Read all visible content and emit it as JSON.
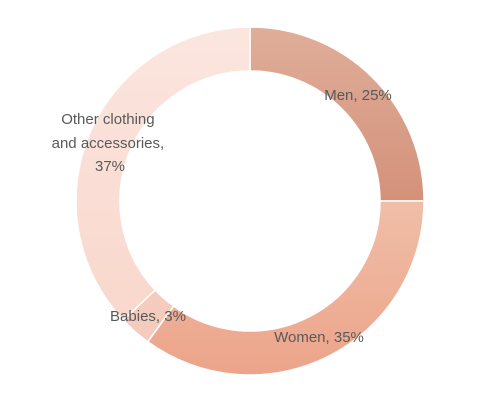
{
  "chart_data": {
    "type": "pie",
    "variant": "donut",
    "title": "",
    "slices": [
      {
        "label": "Men",
        "value": 25,
        "display": "Men, 25%",
        "color_top": "#dfae99",
        "color_bottom": "#d4917a"
      },
      {
        "label": "Women",
        "value": 35,
        "display": "Women, 35%",
        "color_top": "#f0bea8",
        "color_bottom": "#eca48a"
      },
      {
        "label": "Babies",
        "value": 3,
        "display": "Babies, 3%",
        "color_top": "#f5cbbe",
        "color_bottom": "#f5cbbe"
      },
      {
        "label": "Other clothing and accessories",
        "value": 37,
        "display_lines": [
          "Other clothing",
          "and accessories,",
          "37%"
        ],
        "color_top": "#fbe6df",
        "color_bottom": "#f9d7cc"
      }
    ],
    "legend": "none",
    "data_labels": true
  }
}
